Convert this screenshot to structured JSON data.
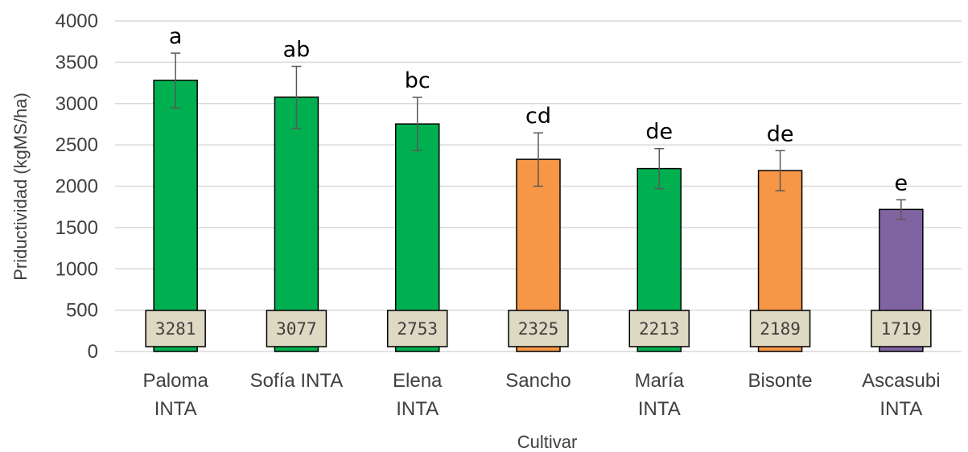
{
  "chart_data": {
    "type": "bar",
    "title": "",
    "xlabel": "Cultivar",
    "ylabel": "Priductividad (kgMS/ha)",
    "ylim": [
      0,
      4000
    ],
    "yticks": [
      0,
      500,
      1000,
      1500,
      2000,
      2500,
      3000,
      3500,
      4000
    ],
    "grid": true,
    "legend": "none",
    "categories": [
      [
        "Paloma",
        "INTA"
      ],
      [
        "Sofía INTA"
      ],
      [
        "Elena",
        "INTA"
      ],
      [
        "Sancho"
      ],
      [
        "María",
        "INTA"
      ],
      [
        "Bisonte"
      ],
      [
        "Ascasubi",
        "INTA"
      ]
    ],
    "values": [
      3281,
      3077,
      2753,
      2325,
      2213,
      2189,
      1719
    ],
    "value_labels": [
      "3281",
      "3077",
      "2753",
      "2325",
      "2213",
      "2189",
      "1719"
    ],
    "error_low": [
      2950,
      2700,
      2430,
      2000,
      1970,
      1945,
      1600
    ],
    "error_high": [
      3610,
      3450,
      3075,
      2645,
      2455,
      2430,
      1835
    ],
    "significance": [
      "a",
      "ab",
      "bc",
      "cd",
      "de",
      "de",
      "e"
    ],
    "bar_colors": [
      "#00B050",
      "#00B050",
      "#00B050",
      "#F79646",
      "#00B050",
      "#F79646",
      "#8064A2"
    ],
    "label_box_color": "#DDD9C3",
    "grid_color": "#D9D9D9"
  }
}
